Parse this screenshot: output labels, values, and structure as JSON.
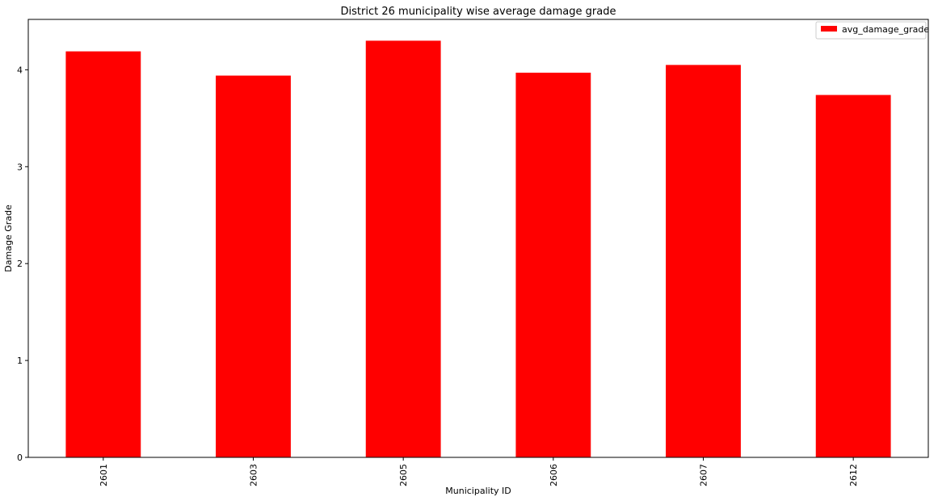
{
  "chart_data": {
    "type": "bar",
    "title": "District 26 municipality wise average damage grade",
    "xlabel": "Municipality ID",
    "ylabel": "Damage Grade",
    "categories": [
      "2601",
      "2603",
      "2605",
      "2606",
      "2607",
      "2612"
    ],
    "series": [
      {
        "name": "avg_damage_grade",
        "values": [
          4.19,
          3.94,
          4.3,
          3.97,
          4.05,
          3.74
        ]
      }
    ],
    "ylim": [
      0,
      4.52
    ],
    "yticks": [
      0,
      1,
      2,
      3,
      4
    ],
    "xtick_rotation": "vertical",
    "grid": false,
    "legend_position": "top-right",
    "colors": {
      "bar": "#ff0000",
      "axis": "#000000",
      "background": "#ffffff"
    }
  }
}
